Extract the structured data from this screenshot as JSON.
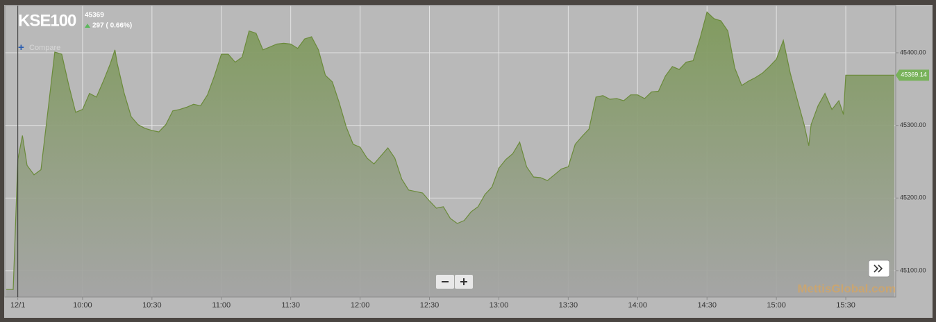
{
  "chart_data": {
    "type": "area",
    "title": "KSE100",
    "price_label": "45369",
    "change_label": "297 ( 0.66%)",
    "compare_label": "Compare",
    "watermark": "MettisGlobal.com",
    "last_label": "45369.14",
    "series": [
      {
        "color": "#6a8a3a",
        "x": [
          567,
          570,
          572,
          574,
          576,
          579,
          582,
          585,
          588,
          591,
          594,
          597,
          600,
          603,
          606,
          609,
          612,
          614,
          615,
          618,
          621,
          624,
          627,
          630,
          633,
          636,
          639,
          642,
          645,
          648,
          651,
          654,
          657,
          660,
          663,
          666,
          669,
          672,
          675,
          678,
          681,
          684,
          687,
          690,
          693,
          696,
          699,
          702,
          705,
          708,
          711,
          714,
          717,
          720,
          723,
          726,
          729,
          732,
          735,
          738,
          741,
          744,
          747,
          750,
          753,
          756,
          759,
          762,
          765,
          768,
          771,
          774,
          777,
          780,
          783,
          786,
          789,
          792,
          795,
          798,
          801,
          804,
          807,
          810,
          813,
          816,
          819,
          822,
          825,
          828,
          831,
          834,
          837,
          840,
          843,
          846,
          849,
          852,
          855,
          858,
          861,
          864,
          867,
          870,
          873,
          876,
          879,
          882,
          885,
          888,
          891,
          894,
          897,
          900,
          903,
          906,
          909,
          912,
          914,
          915,
          918,
          921,
          924,
          927,
          929,
          930,
          951
        ],
        "values": [
          45074,
          45074,
          45253,
          45286,
          45245,
          45232,
          45239,
          45320,
          45401,
          45398,
          45356,
          45318,
          45322,
          45344,
          45339,
          45361,
          45385,
          45404,
          45385,
          45344,
          45312,
          45301,
          45296,
          45293,
          45291,
          45301,
          45320,
          45322,
          45325,
          45329,
          45327,
          45342,
          45368,
          45398,
          45398,
          45387,
          45394,
          45430,
          45427,
          45404,
          45408,
          45412,
          45413,
          45412,
          45406,
          45419,
          45422,
          45404,
          45369,
          45360,
          45331,
          45298,
          45274,
          45270,
          45255,
          45247,
          45258,
          45269,
          45255,
          45226,
          45211,
          45209,
          45207,
          45196,
          45186,
          45188,
          45172,
          45165,
          45169,
          45181,
          45188,
          45205,
          45215,
          45241,
          45253,
          45261,
          45277,
          45243,
          45229,
          45228,
          45224,
          45232,
          45240,
          45243,
          45274,
          45285,
          45295,
          45339,
          45341,
          45336,
          45337,
          45334,
          45342,
          45342,
          45337,
          45346,
          45347,
          45368,
          45381,
          45377,
          45387,
          45389,
          45420,
          45456,
          45447,
          45444,
          45430,
          45379,
          45355,
          45361,
          45366,
          45372,
          45381,
          45391,
          45417,
          45372,
          45336,
          45301,
          45272,
          45301,
          45327,
          45344,
          45322,
          45334,
          45315,
          45369.14,
          45369.14
        ]
      }
    ],
    "xlim": [
      566.4,
      951.6
    ],
    "ylim": [
      45063.7,
      45465
    ],
    "xticks": [
      {
        "value": 572,
        "label": "12/1"
      },
      {
        "value": 600,
        "label": "10:00"
      },
      {
        "value": 630,
        "label": "10:30"
      },
      {
        "value": 660,
        "label": "11:00"
      },
      {
        "value": 690,
        "label": "11:30"
      },
      {
        "value": 720,
        "label": "12:00"
      },
      {
        "value": 750,
        "label": "12:30"
      },
      {
        "value": 780,
        "label": "13:00"
      },
      {
        "value": 810,
        "label": "13:30"
      },
      {
        "value": 840,
        "label": "14:00"
      },
      {
        "value": 870,
        "label": "14:30"
      },
      {
        "value": 900,
        "label": "15:00"
      },
      {
        "value": 930,
        "label": "15:30"
      }
    ],
    "yticks": [
      {
        "value": 45100,
        "label": "45100.00"
      },
      {
        "value": 45200,
        "label": "45200.00"
      },
      {
        "value": 45300,
        "label": "45300.00"
      },
      {
        "value": 45400,
        "label": "45400.00"
      }
    ],
    "grid": true
  }
}
